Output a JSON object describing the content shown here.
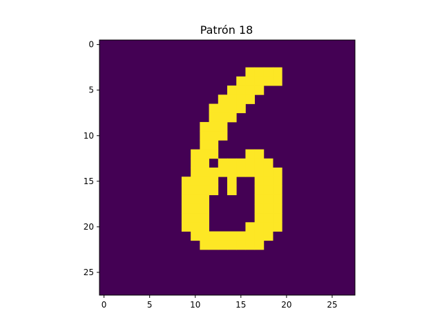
{
  "chart_data": {
    "type": "heatmap",
    "title": "Patrón 18",
    "xlabel": "",
    "ylabel": "",
    "rows": 28,
    "cols": 28,
    "xlim": [
      -0.5,
      27.5
    ],
    "ylim": [
      27.5,
      -0.5
    ],
    "x_ticks": [
      0,
      5,
      10,
      15,
      20,
      25
    ],
    "y_ticks": [
      0,
      5,
      10,
      15,
      20,
      25
    ],
    "colors": {
      "off": "#440154",
      "on": "#fde725"
    },
    "grid": false,
    "legend": "none",
    "on_pixels": [
      [
        3,
        16,
        19
      ],
      [
        4,
        15,
        19
      ],
      [
        5,
        14,
        17
      ],
      [
        6,
        13,
        16
      ],
      [
        7,
        12,
        15
      ],
      [
        8,
        12,
        14
      ],
      [
        9,
        11,
        13
      ],
      [
        10,
        11,
        13
      ],
      [
        11,
        11,
        12
      ],
      [
        12,
        10,
        12
      ],
      [
        12,
        16,
        17
      ],
      [
        13,
        10,
        11
      ],
      [
        13,
        13,
        18
      ],
      [
        14,
        10,
        12
      ],
      [
        14,
        13,
        19
      ],
      [
        15,
        9,
        12
      ],
      [
        15,
        14,
        14
      ],
      [
        15,
        17,
        19
      ],
      [
        16,
        9,
        12
      ],
      [
        16,
        14,
        14
      ],
      [
        16,
        17,
        19
      ],
      [
        17,
        9,
        11
      ],
      [
        17,
        17,
        19
      ],
      [
        18,
        9,
        11
      ],
      [
        18,
        17,
        19
      ],
      [
        19,
        9,
        11
      ],
      [
        19,
        17,
        19
      ],
      [
        20,
        9,
        11
      ],
      [
        20,
        16,
        19
      ],
      [
        21,
        10,
        18
      ],
      [
        22,
        11,
        17
      ]
    ]
  }
}
